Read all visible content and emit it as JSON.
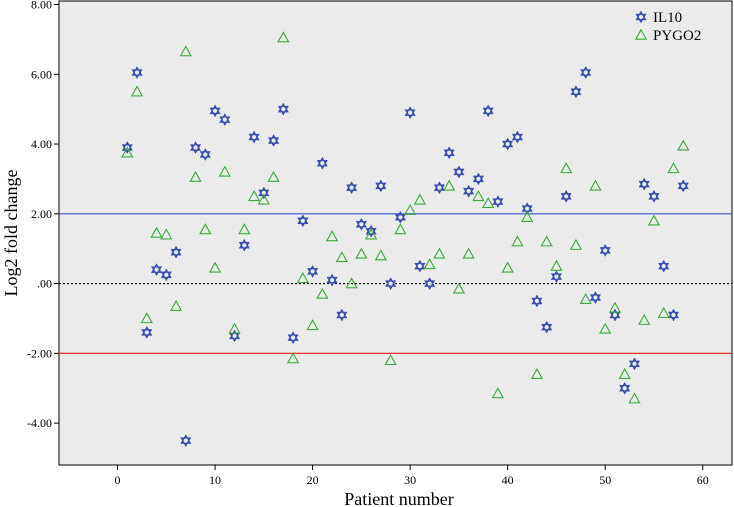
{
  "chart_data": {
    "type": "scatter",
    "title": "",
    "xlabel": "Patient number",
    "ylabel": "Log2 fold change",
    "xlim": [
      -6,
      63
    ],
    "ylim": [
      -5.2,
      8.1
    ],
    "x_ticks": [
      0,
      10,
      20,
      30,
      40,
      50,
      60
    ],
    "y_ticks": [
      8,
      6,
      4,
      2,
      0,
      -2,
      -4
    ],
    "y_tick_labels": [
      "8.00",
      "6.00",
      "4.00",
      "2.00",
      ".00",
      "-2.00",
      "-4.00"
    ],
    "grid": false,
    "legend_position": "top-right",
    "reference_lines": [
      {
        "y": 2,
        "color": "#3a55c8",
        "style": "solid"
      },
      {
        "y": 0,
        "color": "#000000",
        "style": "dotted"
      },
      {
        "y": -2,
        "color": "#e53030",
        "style": "solid"
      }
    ],
    "series": [
      {
        "name": "IL10",
        "marker": "star",
        "color": "#3a4fb0",
        "points": [
          [
            1,
            3.9
          ],
          [
            2,
            6.05
          ],
          [
            3,
            -1.4
          ],
          [
            4,
            0.4
          ],
          [
            5,
            0.25
          ],
          [
            6,
            0.9
          ],
          [
            7,
            -4.5
          ],
          [
            8,
            3.9
          ],
          [
            9,
            3.7
          ],
          [
            10,
            4.95
          ],
          [
            11,
            4.7
          ],
          [
            12,
            -1.5
          ],
          [
            13,
            1.1
          ],
          [
            14,
            4.2
          ],
          [
            15,
            2.6
          ],
          [
            16,
            4.1
          ],
          [
            17,
            5.0
          ],
          [
            18,
            -1.55
          ],
          [
            19,
            1.8
          ],
          [
            20,
            0.35
          ],
          [
            21,
            3.45
          ],
          [
            22,
            0.1
          ],
          [
            23,
            -0.9
          ],
          [
            24,
            2.75
          ],
          [
            25,
            1.7
          ],
          [
            26,
            1.5
          ],
          [
            27,
            2.8
          ],
          [
            28,
            0.0
          ],
          [
            29,
            1.9
          ],
          [
            30,
            4.9
          ],
          [
            31,
            0.5
          ],
          [
            32,
            0.0
          ],
          [
            33,
            2.75
          ],
          [
            34,
            3.75
          ],
          [
            35,
            3.2
          ],
          [
            36,
            2.65
          ],
          [
            37,
            3.0
          ],
          [
            38,
            4.95
          ],
          [
            39,
            2.35
          ],
          [
            40,
            4.0
          ],
          [
            41,
            4.2
          ],
          [
            42,
            2.15
          ],
          [
            43,
            -0.5
          ],
          [
            44,
            -1.25
          ],
          [
            45,
            0.2
          ],
          [
            46,
            2.5
          ],
          [
            47,
            5.5
          ],
          [
            48,
            6.05
          ],
          [
            49,
            -0.4
          ],
          [
            50,
            0.95
          ],
          [
            51,
            -0.9
          ],
          [
            52,
            -3.0
          ],
          [
            53,
            -2.3
          ],
          [
            54,
            2.85
          ],
          [
            55,
            2.5
          ],
          [
            56,
            0.5
          ],
          [
            57,
            -0.9
          ],
          [
            58,
            2.8
          ]
        ]
      },
      {
        "name": "PYGO2",
        "marker": "triangle",
        "color": "#3aaa3a",
        "points": [
          [
            1,
            3.75
          ],
          [
            2,
            5.5
          ],
          [
            3,
            -1.0
          ],
          [
            4,
            1.45
          ],
          [
            5,
            1.4
          ],
          [
            6,
            -0.65
          ],
          [
            7,
            6.65
          ],
          [
            8,
            3.05
          ],
          [
            9,
            1.55
          ],
          [
            10,
            0.45
          ],
          [
            11,
            3.2
          ],
          [
            12,
            -1.3
          ],
          [
            13,
            1.55
          ],
          [
            14,
            2.5
          ],
          [
            15,
            2.4
          ],
          [
            16,
            3.05
          ],
          [
            17,
            7.05
          ],
          [
            18,
            -2.15
          ],
          [
            19,
            0.15
          ],
          [
            20,
            -1.2
          ],
          [
            21,
            -0.3
          ],
          [
            22,
            1.35
          ],
          [
            23,
            0.75
          ],
          [
            24,
            0.0
          ],
          [
            25,
            0.85
          ],
          [
            26,
            1.4
          ],
          [
            27,
            0.8
          ],
          [
            28,
            -2.2
          ],
          [
            29,
            1.55
          ],
          [
            30,
            2.1
          ],
          [
            31,
            2.4
          ],
          [
            32,
            0.55
          ],
          [
            33,
            0.85
          ],
          [
            34,
            2.8
          ],
          [
            35,
            -0.15
          ],
          [
            36,
            0.85
          ],
          [
            37,
            2.5
          ],
          [
            38,
            2.3
          ],
          [
            39,
            -3.15
          ],
          [
            40,
            0.45
          ],
          [
            41,
            1.2
          ],
          [
            42,
            1.9
          ],
          [
            43,
            -2.6
          ],
          [
            44,
            1.2
          ],
          [
            45,
            0.5
          ],
          [
            46,
            3.3
          ],
          [
            47,
            1.1
          ],
          [
            48,
            -0.45
          ],
          [
            49,
            2.8
          ],
          [
            50,
            -1.3
          ],
          [
            51,
            -0.7
          ],
          [
            52,
            -2.6
          ],
          [
            53,
            -3.3
          ],
          [
            54,
            -1.05
          ],
          [
            55,
            1.8
          ],
          [
            56,
            -0.85
          ],
          [
            57,
            3.3
          ],
          [
            58,
            3.95
          ]
        ]
      }
    ]
  }
}
